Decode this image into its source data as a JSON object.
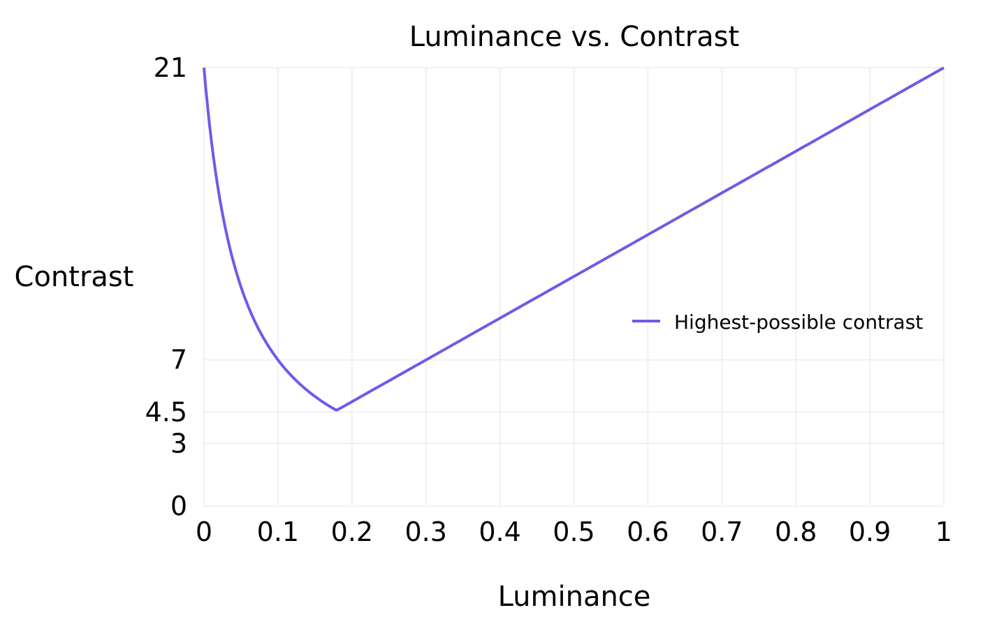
{
  "chart_data": {
    "type": "line",
    "title": "Luminance vs. Contrast",
    "xlabel": "Luminance",
    "ylabel": "Contrast",
    "xlim": [
      0,
      1
    ],
    "ylim": [
      0,
      21
    ],
    "x_ticks": [
      "0",
      "0.1",
      "0.2",
      "0.3",
      "0.4",
      "0.5",
      "0.6",
      "0.7",
      "0.8",
      "0.9",
      "1"
    ],
    "y_ticks": [
      "0",
      "3",
      "4.5",
      "7",
      "21"
    ],
    "grid": true,
    "legend_position": "right",
    "series": [
      {
        "name": "Highest-possible contrast",
        "color": "#6c5ce7",
        "x": [
          0,
          0.01,
          0.02,
          0.03,
          0.05,
          0.07,
          0.1,
          0.12,
          0.15,
          0.179,
          0.2,
          0.3,
          0.4,
          0.5,
          0.6,
          0.7,
          0.8,
          0.9,
          1.0
        ],
        "y": [
          21,
          17.5,
          15,
          13.13,
          10.5,
          8.75,
          7,
          6.18,
          5.25,
          4.58,
          5,
          7,
          9,
          11,
          13,
          15,
          17,
          19,
          21
        ]
      }
    ]
  },
  "labels": {
    "title": "Luminance vs. Contrast",
    "xlabel": "Luminance",
    "ylabel": "Contrast",
    "legend": "Highest-possible contrast"
  }
}
